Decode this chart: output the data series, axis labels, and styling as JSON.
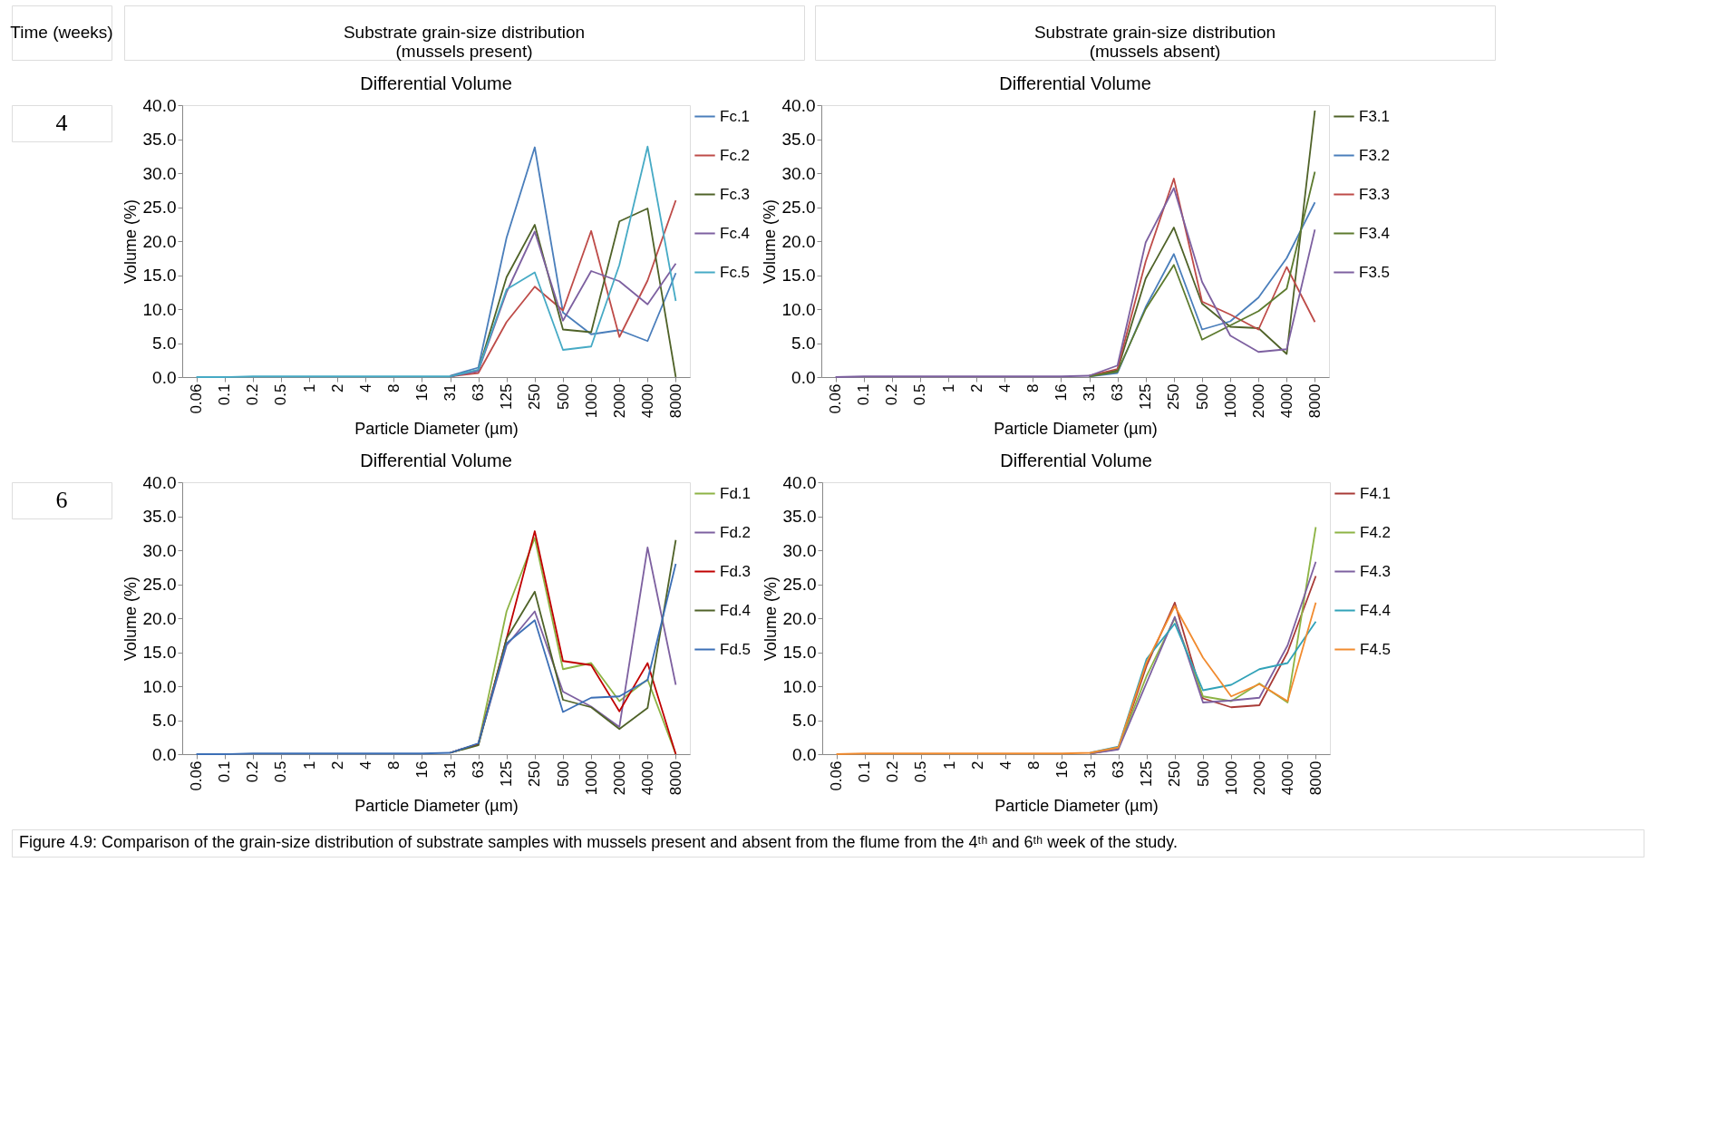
{
  "chart_data": [
    {
      "type": "line",
      "title": "Differential Volume",
      "xlabel": "Particle Diameter (µm)",
      "ylabel": "Volume (%)",
      "annotations": [
        "Time (weeks)",
        "Substrate grain-size distribution\n(mussels present)",
        "4"
      ],
      "categories": [
        "0.06",
        "0.1",
        "0.2",
        "0.5",
        "1",
        "2",
        "4",
        "8",
        "16",
        "31",
        "63",
        "125",
        "250",
        "500",
        "1000",
        "2000",
        "4000",
        "8000"
      ],
      "ylim": [
        0,
        40
      ],
      "yticks": [
        {
          "value": 0,
          "label": "0.0"
        },
        {
          "value": 5,
          "label": "5.0"
        },
        {
          "value": 10,
          "label": "10.0"
        },
        {
          "value": 15,
          "label": "15.0"
        },
        {
          "value": 20,
          "label": "20.0"
        },
        {
          "value": 25,
          "label": "25.0"
        },
        {
          "value": 30,
          "label": "30.0"
        },
        {
          "value": 35,
          "label": "35.0"
        },
        {
          "value": 40,
          "label": "40.0"
        }
      ],
      "legend": "right",
      "series": [
        {
          "name": "Fc.1",
          "color": "#4a7ebb",
          "values": [
            null,
            null,
            null,
            null,
            null,
            null,
            null,
            null,
            null,
            0.2,
            1.4,
            20.5,
            33.8,
            9.5,
            6.3,
            6.9,
            5.3,
            15.3
          ]
        },
        {
          "name": "Fc.2",
          "color": "#be4b48",
          "values": [
            null,
            null,
            null,
            null,
            null,
            null,
            null,
            null,
            null,
            0.1,
            0.6,
            8.1,
            13.3,
            9.8,
            21.5,
            5.9,
            14.2,
            26.0
          ]
        },
        {
          "name": "Fc.3",
          "color": "#4f6228",
          "values": [
            null,
            null,
            null,
            null,
            null,
            null,
            null,
            null,
            null,
            0.1,
            1.0,
            14.7,
            22.4,
            7.0,
            6.6,
            22.9,
            24.8,
            0.0
          ]
        },
        {
          "name": "Fc.4",
          "color": "#7d60a0",
          "values": [
            null,
            null,
            null,
            null,
            null,
            null,
            null,
            null,
            null,
            0.1,
            0.9,
            12.5,
            21.4,
            8.3,
            15.6,
            14.1,
            10.7,
            16.7
          ]
        },
        {
          "name": "Fc.5",
          "color": "#46aac5",
          "values": [
            0.0,
            0.0,
            0.1,
            0.1,
            0.1,
            0.1,
            0.1,
            0.1,
            0.1,
            0.1,
            1.1,
            12.9,
            15.4,
            4.0,
            4.5,
            16.5,
            33.9,
            11.2
          ]
        }
      ]
    },
    {
      "type": "line",
      "title": "Differential Volume",
      "xlabel": "Particle Diameter (µm)",
      "ylabel": "Volume (%)",
      "annotations": [
        "Substrate grain-size distribution\n(mussels absent)"
      ],
      "categories": [
        "0.06",
        "0.1",
        "0.2",
        "0.5",
        "1",
        "2",
        "4",
        "8",
        "16",
        "31",
        "63",
        "125",
        "250",
        "500",
        "1000",
        "2000",
        "4000",
        "8000"
      ],
      "ylim": [
        0,
        40
      ],
      "yticks": [
        {
          "value": 0,
          "label": "0.0"
        },
        {
          "value": 5,
          "label": "5.0"
        },
        {
          "value": 10,
          "label": "10.0"
        },
        {
          "value": 15,
          "label": "15.0"
        },
        {
          "value": 20,
          "label": "20.0"
        },
        {
          "value": 25,
          "label": "25.0"
        },
        {
          "value": 30,
          "label": "30.0"
        },
        {
          "value": 35,
          "label": "35.0"
        },
        {
          "value": 40,
          "label": "40.0"
        }
      ],
      "legend": "right",
      "series": [
        {
          "name": "F3.1",
          "color": "#4f6228",
          "values": [
            null,
            null,
            null,
            null,
            null,
            null,
            null,
            null,
            null,
            0.2,
            1.0,
            14.5,
            22.0,
            10.8,
            7.4,
            7.2,
            3.4,
            39.2
          ]
        },
        {
          "name": "F3.2",
          "color": "#4a7ebb",
          "values": [
            null,
            null,
            null,
            null,
            null,
            null,
            null,
            null,
            null,
            0.1,
            0.6,
            10.3,
            18.1,
            7.0,
            8.2,
            11.7,
            17.5,
            25.7
          ]
        },
        {
          "name": "F3.3",
          "color": "#be4b48",
          "values": [
            null,
            null,
            null,
            null,
            null,
            null,
            null,
            null,
            null,
            0.2,
            1.2,
            17.0,
            29.2,
            11.1,
            9.2,
            7.0,
            16.2,
            8.1
          ]
        },
        {
          "name": "F3.4",
          "color": "#5c7a2e",
          "values": [
            null,
            null,
            null,
            null,
            null,
            null,
            null,
            null,
            null,
            0.1,
            0.8,
            10.0,
            16.5,
            5.5,
            7.6,
            9.7,
            13.0,
            30.2
          ]
        },
        {
          "name": "F3.5",
          "color": "#7d60a0",
          "values": [
            0.0,
            0.1,
            0.1,
            0.1,
            0.1,
            0.1,
            0.1,
            0.1,
            0.1,
            0.2,
            1.7,
            19.8,
            27.8,
            14.0,
            6.1,
            3.7,
            4.1,
            21.7
          ]
        }
      ]
    },
    {
      "type": "line",
      "title": "Differential Volume",
      "xlabel": "Particle Diameter (µm)",
      "ylabel": "Volume (%)",
      "annotations": [
        "6"
      ],
      "categories": [
        "0.06",
        "0.1",
        "0.2",
        "0.5",
        "1",
        "2",
        "4",
        "8",
        "16",
        "31",
        "63",
        "125",
        "250",
        "500",
        "1000",
        "2000",
        "4000",
        "8000"
      ],
      "ylim": [
        0,
        40
      ],
      "yticks": [
        {
          "value": 0,
          "label": "0.0"
        },
        {
          "value": 5,
          "label": "5.0"
        },
        {
          "value": 10,
          "label": "10.0"
        },
        {
          "value": 15,
          "label": "15.0"
        },
        {
          "value": 20,
          "label": "20.0"
        },
        {
          "value": 25,
          "label": "25.0"
        },
        {
          "value": 30,
          "label": "30.0"
        },
        {
          "value": 35,
          "label": "35.0"
        },
        {
          "value": 40,
          "label": "40.0"
        }
      ],
      "legend": "right",
      "series": [
        {
          "name": "Fd.1",
          "color": "#8db344",
          "values": [
            null,
            null,
            null,
            null,
            null,
            null,
            null,
            null,
            null,
            0.2,
            1.5,
            21.0,
            31.8,
            12.5,
            13.4,
            7.8,
            11.0,
            0.0
          ]
        },
        {
          "name": "Fd.2",
          "color": "#7d60a0",
          "values": [
            null,
            null,
            null,
            null,
            null,
            null,
            null,
            null,
            null,
            0.2,
            1.5,
            16.0,
            21.0,
            9.2,
            7.0,
            4.0,
            30.4,
            10.2
          ]
        },
        {
          "name": "Fd.3",
          "color": "#c00000",
          "values": [
            null,
            null,
            null,
            null,
            null,
            null,
            null,
            null,
            null,
            0.2,
            1.5,
            17.0,
            32.8,
            13.7,
            13.1,
            6.3,
            13.4,
            0.0
          ]
        },
        {
          "name": "Fd.4",
          "color": "#4f6228",
          "values": [
            null,
            null,
            null,
            null,
            null,
            null,
            null,
            null,
            null,
            0.2,
            1.3,
            17.0,
            23.9,
            8.0,
            6.9,
            3.7,
            6.8,
            31.5
          ]
        },
        {
          "name": "Fd.5",
          "color": "#3c6fb6",
          "values": [
            0.0,
            0.0,
            0.1,
            0.1,
            0.1,
            0.1,
            0.1,
            0.1,
            0.1,
            0.2,
            1.6,
            16.3,
            19.7,
            6.2,
            8.3,
            8.5,
            10.9,
            28.0
          ]
        }
      ]
    },
    {
      "type": "line",
      "title": "Differential Volume",
      "xlabel": "Particle Diameter (µm)",
      "ylabel": "Volume (%)",
      "annotations": [
        "Figure 4.9:  Comparison of the grain-size distribution of substrate samples with mussels present and absent from the flume from the 4ᵗʰ and 6ᵗʰ week of the study."
      ],
      "categories": [
        "0.06",
        "0.1",
        "0.2",
        "0.5",
        "1",
        "2",
        "4",
        "8",
        "16",
        "31",
        "63",
        "125",
        "250",
        "500",
        "1000",
        "2000",
        "4000",
        "8000"
      ],
      "ylim": [
        0,
        40
      ],
      "yticks": [
        {
          "value": 0,
          "label": "0.0"
        },
        {
          "value": 5,
          "label": "5.0"
        },
        {
          "value": 10,
          "label": "10.0"
        },
        {
          "value": 15,
          "label": "15.0"
        },
        {
          "value": 20,
          "label": "20.0"
        },
        {
          "value": 25,
          "label": "25.0"
        },
        {
          "value": 30,
          "label": "30.0"
        },
        {
          "value": 35,
          "label": "35.0"
        },
        {
          "value": 40,
          "label": "40.0"
        }
      ],
      "legend": "right",
      "series": [
        {
          "name": "F4.1",
          "color": "#a83a36",
          "values": [
            null,
            null,
            null,
            null,
            null,
            null,
            null,
            null,
            null,
            0.1,
            0.8,
            13.0,
            22.3,
            8.2,
            6.9,
            7.2,
            15.0,
            26.2
          ]
        },
        {
          "name": "F4.2",
          "color": "#8db344",
          "values": [
            null,
            null,
            null,
            null,
            null,
            null,
            null,
            null,
            null,
            0.1,
            0.9,
            11.5,
            20.0,
            8.5,
            7.8,
            10.4,
            7.6,
            33.4
          ]
        },
        {
          "name": "F4.3",
          "color": "#7d60a0",
          "values": [
            null,
            null,
            null,
            null,
            null,
            null,
            null,
            null,
            null,
            0.1,
            0.7,
            10.5,
            20.2,
            7.6,
            7.9,
            8.3,
            16.0,
            28.3
          ]
        },
        {
          "name": "F4.4",
          "color": "#31a2b8",
          "values": [
            null,
            null,
            null,
            null,
            null,
            null,
            null,
            null,
            null,
            0.2,
            1.1,
            14.0,
            19.2,
            9.4,
            10.2,
            12.5,
            13.4,
            19.5
          ]
        },
        {
          "name": "F4.5",
          "color": "#f18b2f",
          "values": [
            0.0,
            0.1,
            0.1,
            0.1,
            0.1,
            0.1,
            0.1,
            0.1,
            0.1,
            0.2,
            1.0,
            13.5,
            21.8,
            14.2,
            8.5,
            10.3,
            7.8,
            22.3
          ]
        }
      ]
    }
  ]
}
